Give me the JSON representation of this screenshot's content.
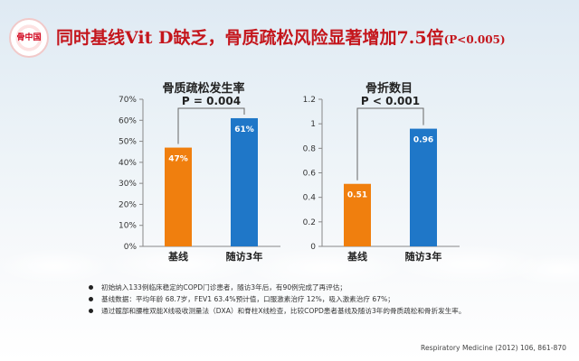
{
  "slide": {
    "title": "同时基线Vit D缺乏，骨质疏松风险显著增加7.5倍",
    "title_p": "(P<0.005)",
    "logo_text": "骨中国",
    "bullets": [
      "初始纳入133例临床稳定的COPD门诊患者，随访3年后，有90例完成了再评估；",
      "基线数据：平均年龄 68.7岁，FEV1 63.4%预计值，口服激素治疗 12%，吸入激素治疗 67%；",
      "通过髋部和腰椎双能X线吸收测量法（DXA）和脊柱X线检查，比较COPD患者基线及随访3年的骨质疏松和骨折发生率。"
    ],
    "source": "Respiratory Medicine (2012) 106, 861-870"
  },
  "chart_data": [
    {
      "type": "bar",
      "title": "骨质疏松发生率",
      "categories": [
        "基线",
        "随访3年"
      ],
      "values": [
        47,
        61
      ],
      "value_labels": [
        "47%",
        "61%"
      ],
      "colors": [
        "#f07f0e",
        "#1f77c8"
      ],
      "ylim": [
        0,
        70
      ],
      "yticks": [
        0,
        10,
        20,
        30,
        40,
        50,
        60,
        70
      ],
      "ytick_labels": [
        "0%",
        "10%",
        "20%",
        "30%",
        "40%",
        "50%",
        "60%",
        "70%"
      ],
      "annotation": "P = 0.004",
      "grid": false
    },
    {
      "type": "bar",
      "title": "骨折数目",
      "categories": [
        "基线",
        "随访3年"
      ],
      "values": [
        0.51,
        0.96
      ],
      "value_labels": [
        "0.51",
        "0.96"
      ],
      "colors": [
        "#f07f0e",
        "#1f77c8"
      ],
      "ylim": [
        0,
        1.2
      ],
      "yticks": [
        0,
        0.2,
        0.4,
        0.6,
        0.8,
        1.0,
        1.2
      ],
      "ytick_labels": [
        "0",
        "0.2",
        "0.4",
        "0.6",
        "0.8",
        "1",
        "1.2"
      ],
      "annotation": "P < 0.001",
      "grid": false
    }
  ]
}
